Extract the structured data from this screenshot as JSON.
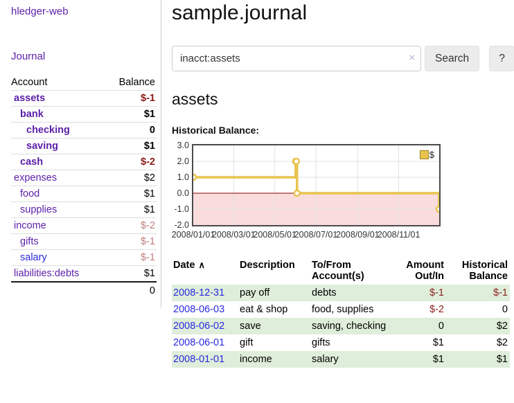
{
  "app_title": "hledger-web",
  "sidebar": {
    "journal_link": "Journal",
    "accounts_table": {
      "account_header": "Account",
      "balance_header": "Balance",
      "rows": [
        {
          "account": "assets",
          "balance": "$-1"
        },
        {
          "account": "bank",
          "balance": "$1"
        },
        {
          "account": "checking",
          "balance": "0"
        },
        {
          "account": "saving",
          "balance": "$1"
        },
        {
          "account": "cash",
          "balance": "$-2"
        },
        {
          "account": "expenses",
          "balance": "$2"
        },
        {
          "account": "food",
          "balance": "$1"
        },
        {
          "account": "supplies",
          "balance": "$1"
        },
        {
          "account": "income",
          "balance": "$-2"
        },
        {
          "account": "gifts",
          "balance": "$-1"
        },
        {
          "account": "salary",
          "balance": "$-1"
        },
        {
          "account": "liabilities:debts",
          "balance": "$1"
        }
      ],
      "total": "0"
    }
  },
  "main": {
    "title": "sample.journal",
    "search": {
      "value": "inacct:assets",
      "clear_icon": "×",
      "search_button_label": "Search",
      "help_button_label": "?"
    },
    "account_heading": "assets"
  },
  "chart_data": {
    "type": "line",
    "step": true,
    "title": "Historical Balance:",
    "series": [
      {
        "name": "$",
        "x": [
          "2008-01-01",
          "2008-06-01",
          "2008-06-02",
          "2008-06-03",
          "2008-12-31"
        ],
        "values": [
          1,
          2,
          2,
          0,
          -1
        ]
      }
    ],
    "ylim": [
      -2,
      3
    ],
    "yticks": [
      "3.0",
      "2.0",
      "1.0",
      "0.0",
      "-1.0",
      "-2.0"
    ],
    "xticks": [
      "2008/01/01",
      "2008/03/01",
      "2008/05/01",
      "2008/07/01",
      "2008/09/01",
      "2008/11/01"
    ],
    "legend_position": "top-right",
    "line_color": "#e8c44f",
    "negative_region_color": "#fadcdc",
    "zero_line_color": "#8b0000",
    "grid": true
  },
  "register": {
    "columns": [
      "Date",
      "Description",
      "To/From\nAccount(s)",
      "Amount\nOut/In",
      "Historical\nBalance"
    ],
    "sort_icon": "∧",
    "rows": [
      {
        "date": "2008-12-31",
        "description": "pay off",
        "accounts": "debts",
        "amount": "$-1",
        "balance": "$-1"
      },
      {
        "date": "2008-06-03",
        "description": "eat & shop",
        "accounts": "food, supplies",
        "amount": "$-2",
        "balance": "0"
      },
      {
        "date": "2008-06-02",
        "description": "save",
        "accounts": "saving, checking",
        "amount": "0",
        "balance": "$2"
      },
      {
        "date": "2008-06-01",
        "description": "gift",
        "accounts": "gifts",
        "amount": "$1",
        "balance": "$2"
      },
      {
        "date": "2008-01-01",
        "description": "income",
        "accounts": "salary",
        "amount": "$1",
        "balance": "$1"
      }
    ]
  }
}
